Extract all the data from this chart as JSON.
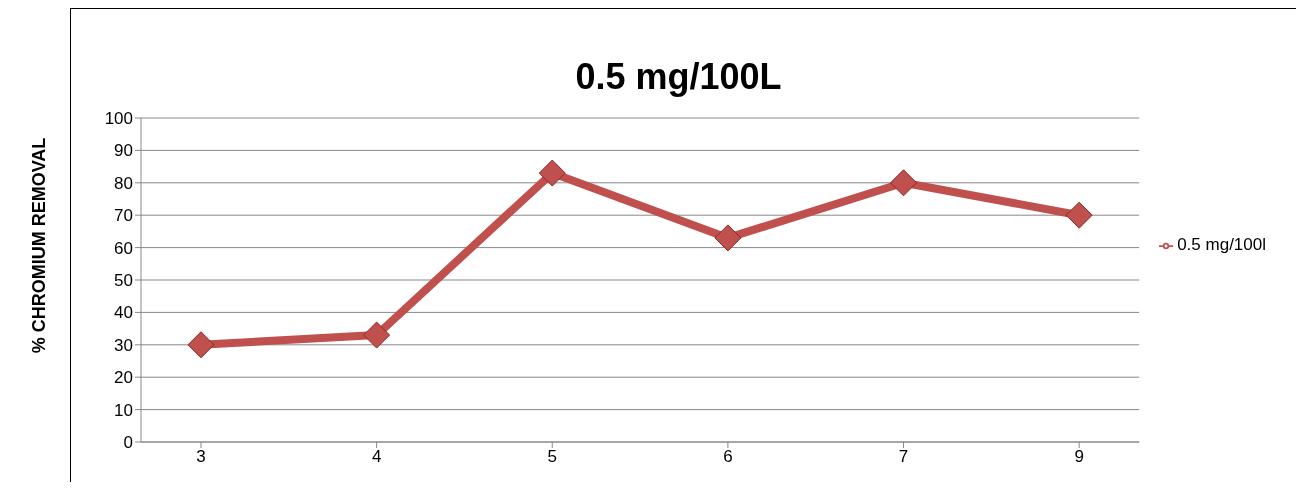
{
  "chart_data": {
    "type": "line",
    "title": "0.5 mg/100L",
    "ylabel": "% CHROMIUM  REMOVAL",
    "categories": [
      "3",
      "4",
      "5",
      "6",
      "7",
      "9"
    ],
    "series": [
      {
        "name": "0.5 mg/100l",
        "color": "#c0504d",
        "values": [
          30,
          33,
          83,
          63,
          80,
          70
        ]
      }
    ],
    "ylim": [
      0,
      100
    ],
    "yticks": [
      0,
      10,
      20,
      30,
      40,
      50,
      60,
      70,
      80,
      90,
      100
    ],
    "grid": "y",
    "legend": "right",
    "marker": "diamond",
    "line_style": "solid"
  }
}
